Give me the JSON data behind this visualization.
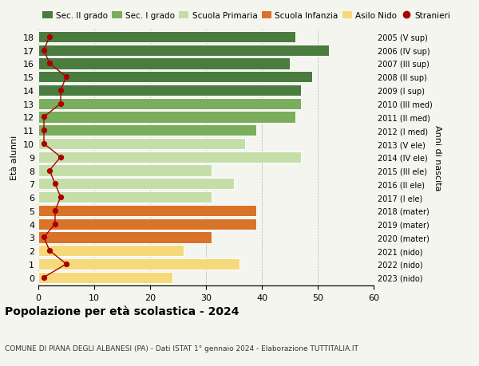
{
  "ages": [
    18,
    17,
    16,
    15,
    14,
    13,
    12,
    11,
    10,
    9,
    8,
    7,
    6,
    5,
    4,
    3,
    2,
    1,
    0
  ],
  "values": [
    46,
    52,
    45,
    49,
    47,
    47,
    46,
    39,
    37,
    47,
    31,
    35,
    31,
    39,
    39,
    31,
    26,
    36,
    24
  ],
  "stranieri": [
    2,
    1,
    2,
    5,
    4,
    4,
    1,
    1,
    1,
    4,
    2,
    3,
    4,
    3,
    3,
    1,
    2,
    5,
    1
  ],
  "right_labels": [
    "2005 (V sup)",
    "2006 (IV sup)",
    "2007 (III sup)",
    "2008 (II sup)",
    "2009 (I sup)",
    "2010 (III med)",
    "2011 (II med)",
    "2012 (I med)",
    "2013 (V ele)",
    "2014 (IV ele)",
    "2015 (III ele)",
    "2016 (II ele)",
    "2017 (I ele)",
    "2018 (mater)",
    "2019 (mater)",
    "2020 (mater)",
    "2021 (nido)",
    "2022 (nido)",
    "2023 (nido)"
  ],
  "bar_colors": [
    "#4a7c3f",
    "#4a7c3f",
    "#4a7c3f",
    "#4a7c3f",
    "#4a7c3f",
    "#7aad5c",
    "#7aad5c",
    "#7aad5c",
    "#c5dea8",
    "#c5dea8",
    "#c5dea8",
    "#c5dea8",
    "#c5dea8",
    "#d9732a",
    "#d9732a",
    "#d9732a",
    "#f5d97a",
    "#f5d97a",
    "#f5d97a"
  ],
  "legend_labels": [
    "Sec. II grado",
    "Sec. I grado",
    "Scuola Primaria",
    "Scuola Infanzia",
    "Asilo Nido",
    "Stranieri"
  ],
  "legend_colors": [
    "#4a7c3f",
    "#7aad5c",
    "#c5dea8",
    "#d9732a",
    "#f5d97a",
    "#aa0000"
  ],
  "stranieri_color": "#aa0000",
  "title": "Popolazione per età scolastica - 2024",
  "subtitle": "COMUNE DI PIANA DEGLI ALBANESI (PA) - Dati ISTAT 1° gennaio 2024 - Elaborazione TUTTITALIA.IT",
  "ylabel_left": "Età alunni",
  "ylabel_right": "Anni di nascita",
  "xlim": [
    0,
    60
  ],
  "xticks": [
    0,
    10,
    20,
    30,
    40,
    50,
    60
  ],
  "background_color": "#f5f5f0"
}
